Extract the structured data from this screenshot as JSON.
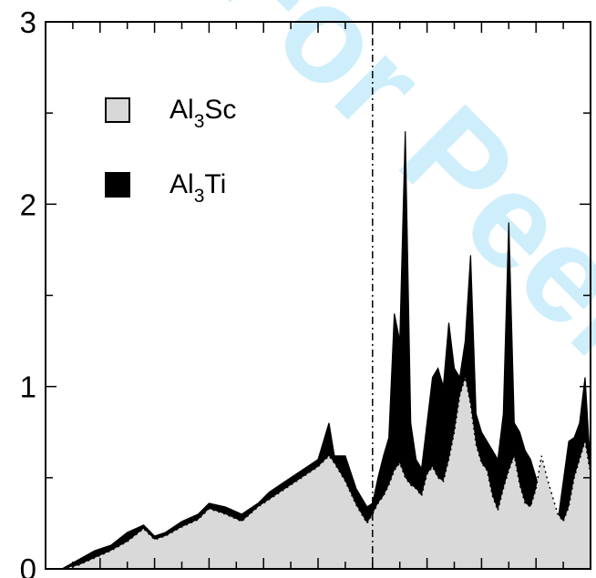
{
  "watermark": "For Peer Re",
  "chart_data": {
    "type": "area",
    "title": "",
    "xlabel": "",
    "ylabel": "",
    "xlim": [
      0,
      1
    ],
    "ylim": [
      0,
      3
    ],
    "yticks": [
      "0",
      "1",
      "2",
      "3"
    ],
    "grid": false,
    "legend_position": "top-left",
    "vertical_line": {
      "x": 0.6,
      "style": "dash-dot"
    },
    "x": [
      0.0,
      0.03,
      0.06,
      0.09,
      0.12,
      0.15,
      0.18,
      0.2,
      0.22,
      0.25,
      0.28,
      0.3,
      0.33,
      0.36,
      0.39,
      0.41,
      0.44,
      0.47,
      0.5,
      0.52,
      0.53,
      0.55,
      0.57,
      0.59,
      0.6,
      0.61,
      0.62,
      0.63,
      0.64,
      0.65,
      0.66,
      0.67,
      0.68,
      0.69,
      0.7,
      0.71,
      0.72,
      0.73,
      0.74,
      0.75,
      0.76,
      0.77,
      0.78,
      0.79,
      0.8,
      0.81,
      0.82,
      0.83,
      0.84,
      0.85,
      0.86,
      0.87,
      0.88,
      0.89,
      0.9,
      0.91,
      0.92,
      0.93,
      0.94,
      0.95,
      0.96,
      0.97,
      0.98,
      0.99,
      1.0
    ],
    "series": [
      {
        "name": "Al3Sc",
        "style": "filled-light-gray-dotted-edge",
        "values": [
          0.0,
          0.0,
          0.02,
          0.06,
          0.1,
          0.15,
          0.22,
          0.16,
          0.18,
          0.23,
          0.27,
          0.33,
          0.3,
          0.26,
          0.34,
          0.38,
          0.44,
          0.5,
          0.56,
          0.62,
          0.58,
          0.48,
          0.35,
          0.25,
          0.3,
          0.36,
          0.4,
          0.46,
          0.54,
          0.58,
          0.5,
          0.46,
          0.44,
          0.4,
          0.52,
          0.56,
          0.5,
          0.48,
          0.6,
          0.75,
          0.95,
          1.05,
          0.9,
          0.68,
          0.58,
          0.54,
          0.4,
          0.32,
          0.44,
          0.54,
          0.62,
          0.46,
          0.36,
          0.34,
          0.44,
          0.62,
          0.5,
          0.4,
          0.3,
          0.26,
          0.34,
          0.5,
          0.6,
          0.7,
          0.52
        ]
      },
      {
        "name": "Al3Ti",
        "style": "solid-black-fill-difference",
        "values": [
          0.0,
          0.0,
          0.05,
          0.1,
          0.13,
          0.2,
          0.24,
          0.18,
          0.2,
          0.26,
          0.3,
          0.36,
          0.34,
          0.3,
          0.36,
          0.42,
          0.48,
          0.54,
          0.6,
          0.8,
          0.62,
          0.62,
          0.44,
          0.34,
          0.36,
          0.5,
          0.62,
          0.72,
          1.4,
          1.25,
          2.4,
          0.8,
          0.6,
          0.55,
          0.8,
          1.05,
          1.1,
          1.0,
          1.35,
          1.1,
          1.05,
          1.25,
          1.72,
          0.85,
          0.75,
          0.7,
          0.65,
          0.6,
          0.85,
          1.9,
          0.8,
          0.75,
          0.65,
          0.6,
          0.5,
          0.4,
          0.3,
          0.24,
          0.26,
          0.48,
          0.7,
          0.72,
          0.8,
          1.05,
          0.55
        ]
      }
    ]
  },
  "legend": [
    {
      "prefix": "Al",
      "sub": "3",
      "suffix": "Sc",
      "swatch": "#d8d8d8"
    },
    {
      "prefix": "Al",
      "sub": "3",
      "suffix": "Ti",
      "swatch": "#000000"
    }
  ]
}
